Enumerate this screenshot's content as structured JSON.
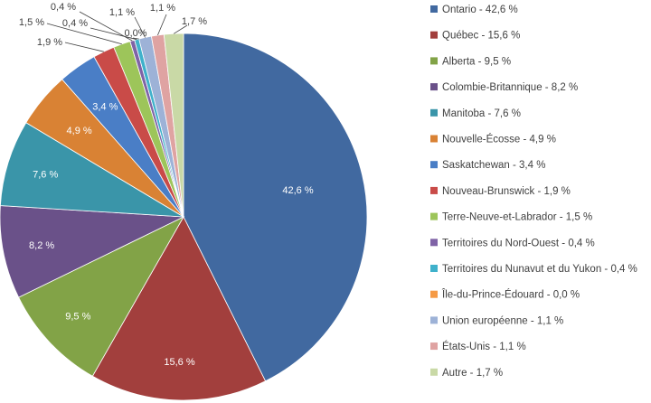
{
  "chart_data": {
    "type": "pie",
    "legend_position": "right",
    "slices": [
      {
        "name": "Ontario - 42,6 %",
        "value": 42.6,
        "label": "42,6 %",
        "color": "#4169A0"
      },
      {
        "name": "Québec - 15,6 %",
        "value": 15.6,
        "label": "15,6 %",
        "color": "#A23F3D"
      },
      {
        "name": "Alberta - 9,5 %",
        "value": 9.5,
        "label": "9,5 %",
        "color": "#82A347"
      },
      {
        "name": "Colombie-Britannique - 8,2 %",
        "value": 8.2,
        "label": "8,2 %",
        "color": "#6A5189"
      },
      {
        "name": "Manitoba - 7,6 %",
        "value": 7.6,
        "label": "7,6 %",
        "color": "#3A95A9"
      },
      {
        "name": "Nouvelle-Écosse - 4,9 %",
        "value": 4.9,
        "label": "4,9 %",
        "color": "#D98234"
      },
      {
        "name": "Saskatchewan - 3,4 %",
        "value": 3.4,
        "label": "3,4 %",
        "color": "#4A7EC6"
      },
      {
        "name": "Nouveau-Brunswick - 1,9 %",
        "value": 1.9,
        "label": "1,9 %",
        "color": "#C94B48"
      },
      {
        "name": "Terre-Neuve-et-Labrador - 1,5 %",
        "value": 1.5,
        "label": "1,5 %",
        "color": "#9DC55A"
      },
      {
        "name": "Territoires du Nord-Ouest - 0,4 %",
        "value": 0.4,
        "label": "0,4 %",
        "color": "#7F63A6"
      },
      {
        "name": "Territoires du Nunavut et du Yukon - 0,4 %",
        "value": 0.4,
        "label": "0,4 %",
        "color": "#3FB1CB"
      },
      {
        "name": "Île-du-Prince-Édouard - 0,0 %",
        "value": 0.0,
        "label": "0,0%",
        "color": "#F59A45"
      },
      {
        "name": "Union européenne - 1,1 %",
        "value": 1.1,
        "label": "1,1 %",
        "color": "#9DB2D7"
      },
      {
        "name": "États-Unis -  1,1 %",
        "value": 1.1,
        "label": "1,1 %",
        "color": "#DFA3A2"
      },
      {
        "name": "Autre - 1,7 %",
        "value": 1.7,
        "label": "1,7 %",
        "color": "#C9D9A6"
      }
    ]
  }
}
